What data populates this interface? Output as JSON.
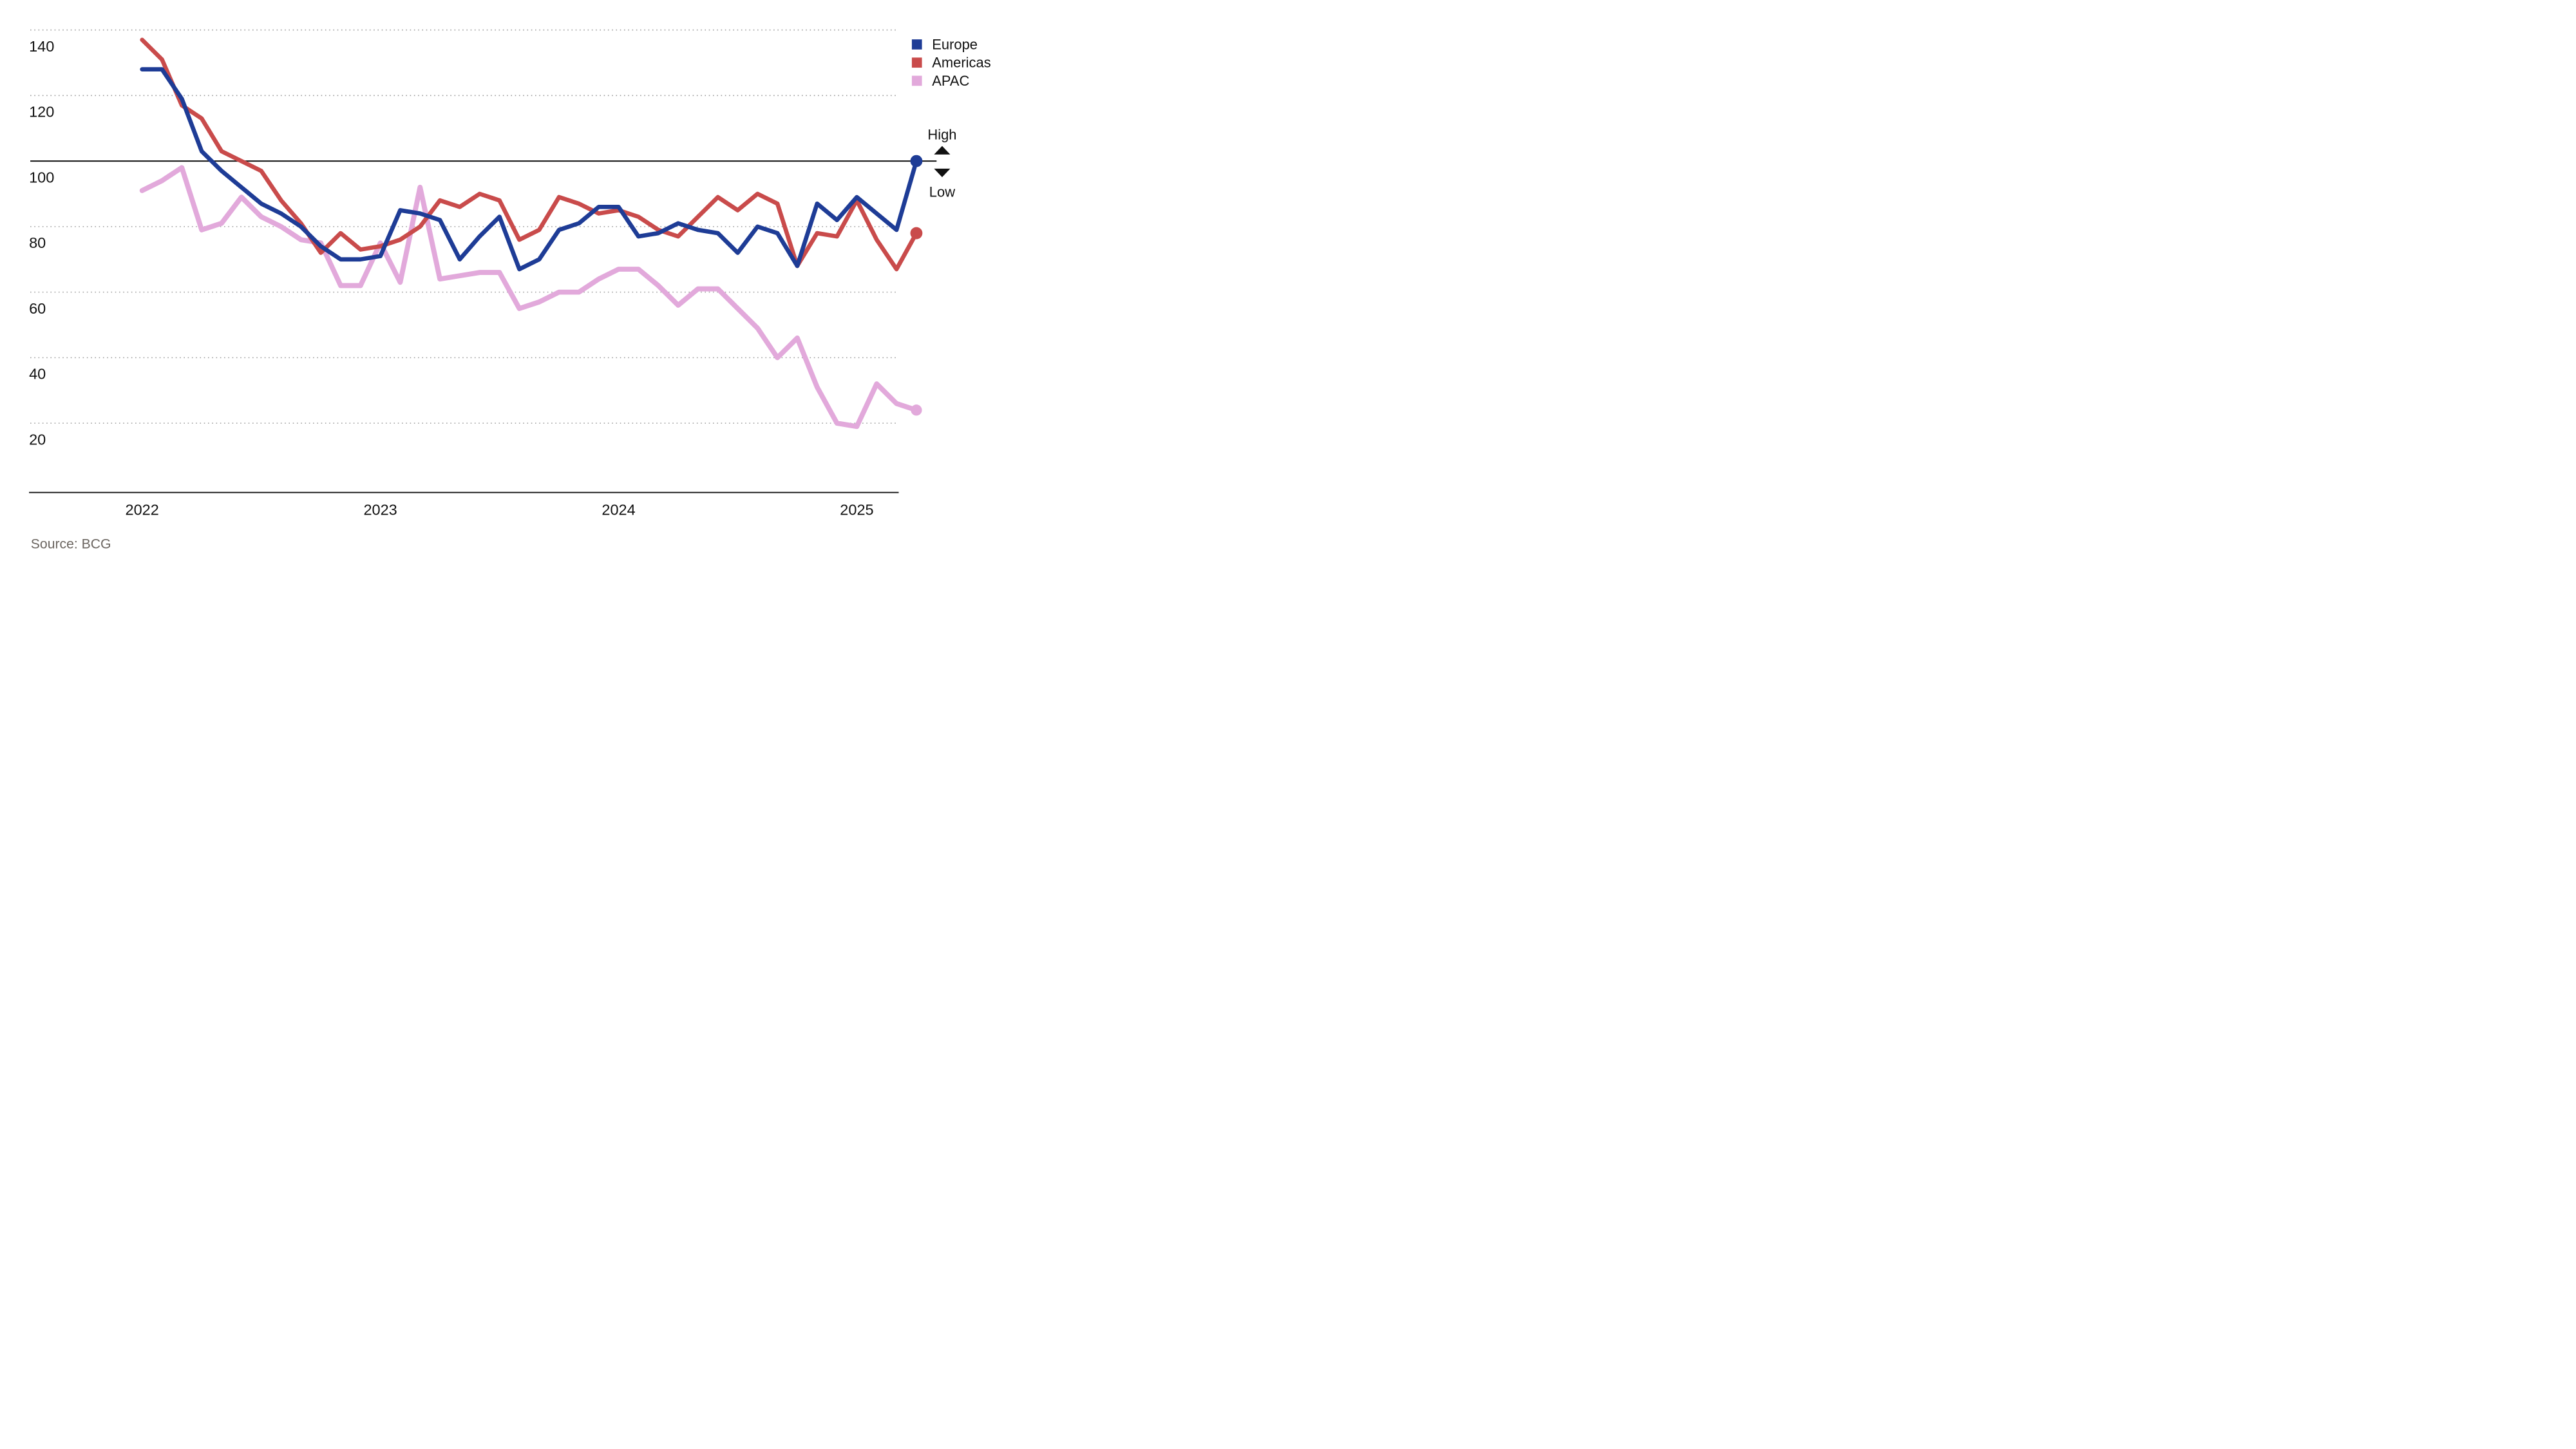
{
  "chart_data": {
    "type": "line",
    "title": "",
    "x_axis": {
      "tick_labels": [
        "2022",
        "2023",
        "2024",
        "2025"
      ],
      "tick_point_index": [
        0,
        12,
        24,
        36
      ],
      "points_per_year": 12,
      "n_points": 40
    },
    "y_axis": {
      "ticks": [
        140,
        120,
        100,
        80,
        60,
        40,
        20
      ],
      "baseline_reference": 100,
      "ylim": [
        10,
        148
      ]
    },
    "grid": "horizontal-dotted",
    "legend_position": "top-right",
    "series": [
      {
        "name": "Europe",
        "color": "#1e3c96",
        "endpoint_dot": true,
        "values": [
          128,
          128,
          119,
          103,
          97,
          92,
          87,
          84,
          80,
          74,
          70,
          70,
          71,
          85,
          84,
          82,
          70,
          77,
          83,
          67,
          70,
          79,
          81,
          86,
          86,
          77,
          78,
          81,
          79,
          78,
          72,
          80,
          78,
          68,
          87,
          82,
          89,
          84,
          79,
          100
        ]
      },
      {
        "name": "Americas",
        "color": "#c94b4b",
        "endpoint_dot": true,
        "values": [
          137,
          131,
          117,
          113,
          103,
          100,
          97,
          88,
          81,
          72,
          78,
          73,
          74,
          76,
          80,
          88,
          86,
          90,
          88,
          76,
          79,
          89,
          87,
          84,
          85,
          83,
          79,
          77,
          83,
          89,
          85,
          90,
          87,
          68,
          78,
          77,
          88,
          76,
          67,
          78
        ]
      },
      {
        "name": "APAC",
        "color": "#e2a9db",
        "endpoint_dot": true,
        "values": [
          91,
          94,
          98,
          79,
          81,
          89,
          83,
          80,
          76,
          75,
          62,
          62,
          75,
          63,
          92,
          64,
          65,
          66,
          66,
          55,
          57,
          60,
          60,
          64,
          67,
          67,
          62,
          56,
          61,
          61,
          55,
          49,
          40,
          46,
          31,
          20,
          19,
          32,
          26,
          24
        ]
      }
    ],
    "annotations": {
      "high": "High",
      "low": "Low"
    },
    "source": "Source: BCG"
  },
  "legend": {
    "items": [
      {
        "label": "Europe",
        "color": "#1e3c96"
      },
      {
        "label": "Americas",
        "color": "#c94b4b"
      },
      {
        "label": "APAC",
        "color": "#e2a9db"
      }
    ]
  },
  "annotation": {
    "high": "High",
    "low": "Low"
  },
  "source_label": "Source: BCG",
  "colors": {
    "background": "#ffffff",
    "gridline": "#999999",
    "reference_line": "#111111",
    "axis_line": "#222222",
    "source_text": "#6b6560"
  }
}
